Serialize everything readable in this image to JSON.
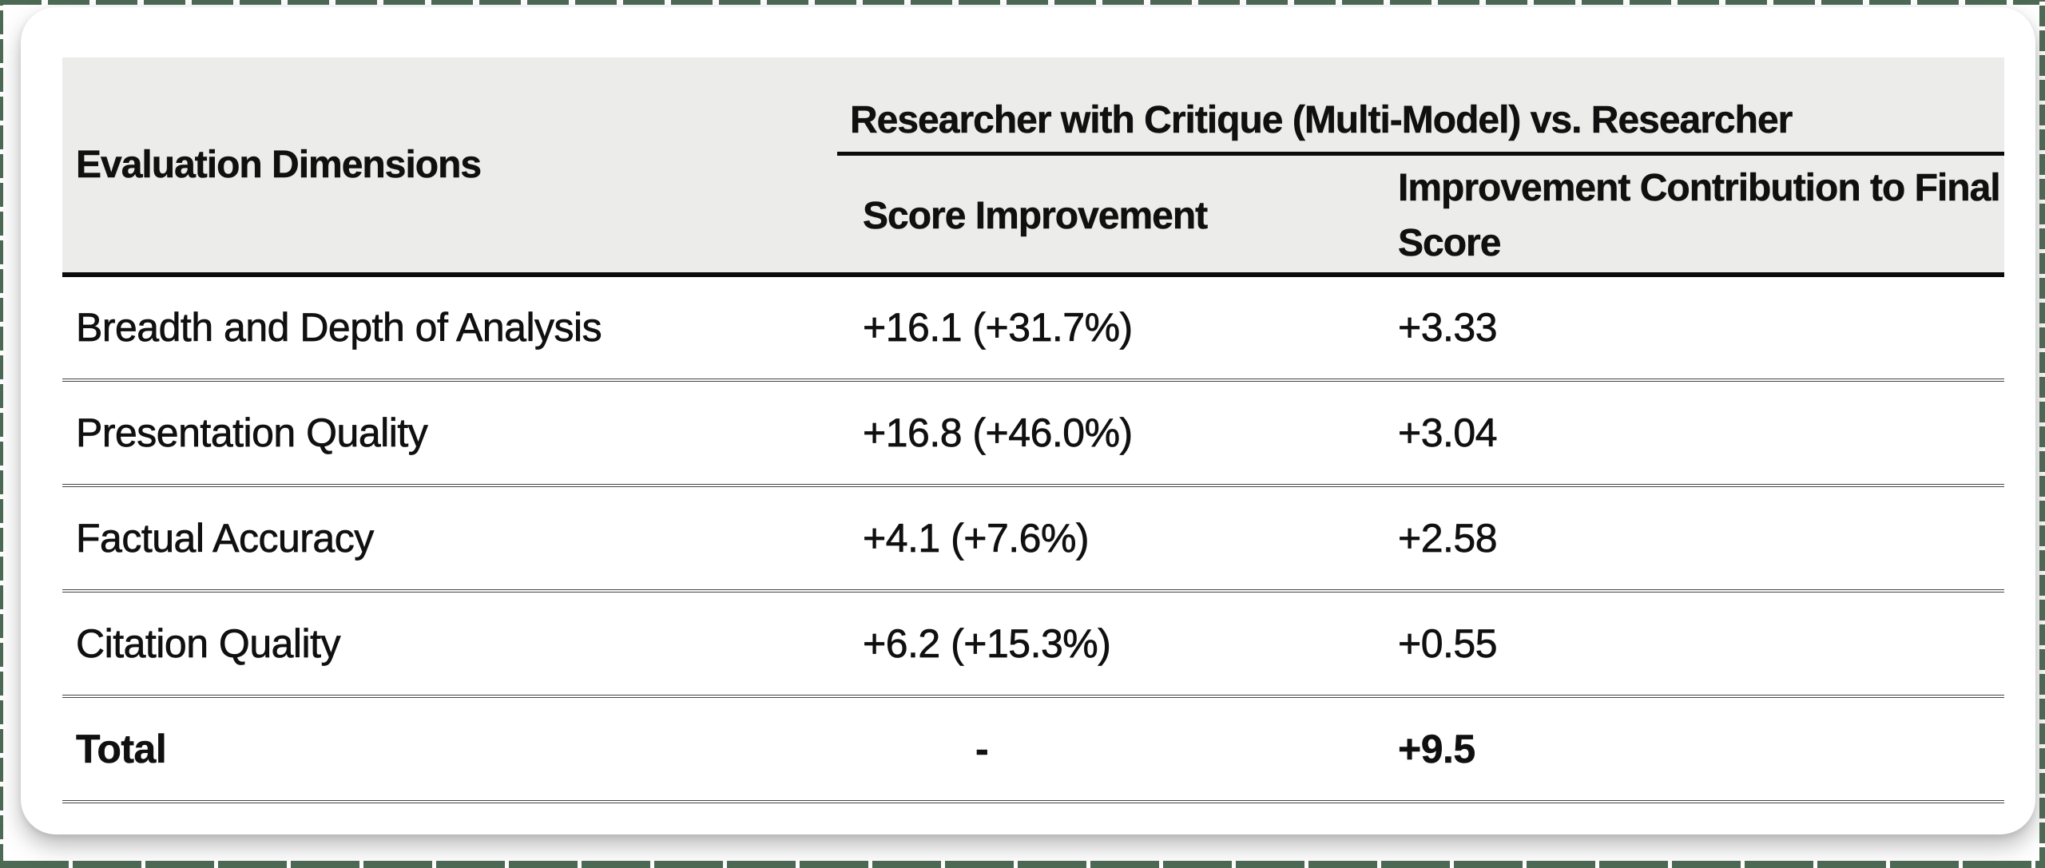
{
  "colors": {
    "background_green": "#4d6a55",
    "card_white": "#ffffff",
    "header_band": "#ECECEA",
    "rule_black": "#0b0b0b",
    "rule_gray": "#454545",
    "text": "#101010"
  },
  "table": {
    "header": {
      "dimension_col": "Evaluation Dimensions",
      "group": "Researcher with Critique (Multi-Model) vs. Researcher",
      "sub": [
        "Score Improvement",
        "Improvement Contribution to Final Score"
      ]
    },
    "rows": [
      {
        "dimension": "Breadth and Depth of Analysis",
        "score_improvement": "+16.1 (+31.7%)",
        "contribution": "+3.33"
      },
      {
        "dimension": "Presentation Quality",
        "score_improvement": "+16.8 (+46.0%)",
        "contribution": "+3.04"
      },
      {
        "dimension": "Factual Accuracy",
        "score_improvement": "+4.1 (+7.6%)",
        "contribution": "+2.58"
      },
      {
        "dimension": "Citation Quality",
        "score_improvement": "+6.2 (+15.3%)",
        "contribution": "+0.55"
      },
      {
        "dimension": "Total",
        "score_improvement": "-",
        "contribution": "+9.5"
      }
    ]
  },
  "chart_data": {
    "type": "table",
    "columns": [
      "Evaluation Dimensions",
      "Score Improvement",
      "Improvement Contribution to Final Score"
    ],
    "group_header": "Researcher with Critique (Multi-Model) vs. Researcher",
    "rows": [
      [
        "Breadth and Depth of Analysis",
        "+16.1 (+31.7%)",
        "+3.33"
      ],
      [
        "Presentation Quality",
        "+16.8 (+46.0%)",
        "+3.04"
      ],
      [
        "Factual Accuracy",
        "+4.1 (+7.6%)",
        "+2.58"
      ],
      [
        "Citation Quality",
        "+6.2 (+15.3%)",
        "+0.55"
      ],
      [
        "Total",
        "-",
        "+9.5"
      ]
    ]
  }
}
